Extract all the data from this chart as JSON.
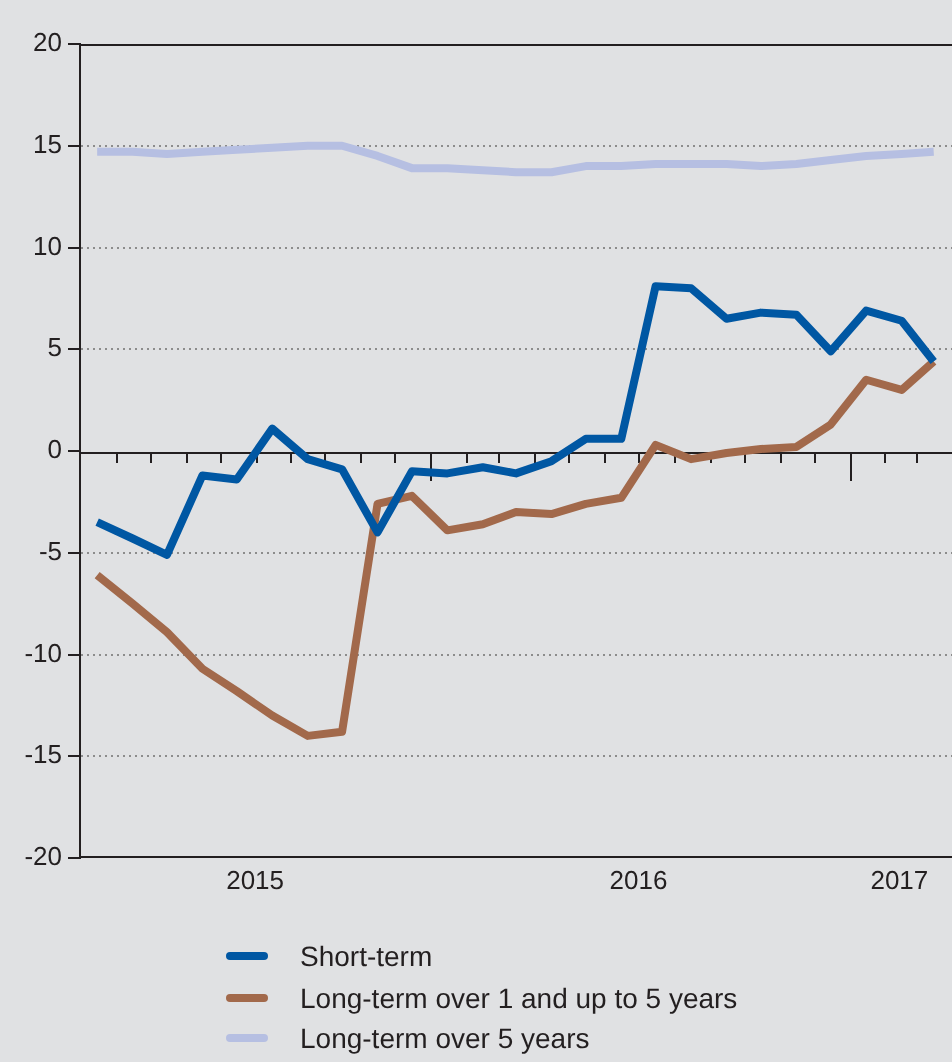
{
  "chart_data": {
    "type": "line",
    "x": [
      "2015-03-16",
      "2015-04-16",
      "2015-05-16",
      "2015-06-16",
      "2015-07-16",
      "2015-08-16",
      "2015-09-16",
      "2015-10-16",
      "2015-11-16",
      "2015-12-16",
      "2016-01-16",
      "2016-02-16",
      "2016-03-16",
      "2016-04-16",
      "2016-05-16",
      "2016-06-16",
      "2016-07-16",
      "2016-08-16",
      "2016-09-16",
      "2016-10-16",
      "2016-11-16",
      "2016-12-16",
      "2017-01-16",
      "2017-02-16",
      "2017-03-16"
    ],
    "xlim": [
      "2015-03-01",
      "2017-04-01"
    ],
    "xticks": [
      {
        "value": "2015-04-01",
        "label": null
      },
      {
        "value": "2015-05-01",
        "label": null
      },
      {
        "value": "2015-06-01",
        "label": null
      },
      {
        "value": "2015-07-01",
        "label": null
      },
      {
        "value": "2015-08-01",
        "label": null
      },
      {
        "value": "2015-09-01",
        "label": null
      },
      {
        "value": "2015-10-01",
        "label": null
      },
      {
        "value": "2015-11-01",
        "label": null
      },
      {
        "value": "2015-12-01",
        "label": null
      },
      {
        "value": "2016-01-01",
        "label": null
      },
      {
        "value": "2016-02-01",
        "label": null
      },
      {
        "value": "2016-03-01",
        "label": null
      },
      {
        "value": "2016-04-01",
        "label": null
      },
      {
        "value": "2016-05-01",
        "label": null
      },
      {
        "value": "2016-06-01",
        "label": null
      },
      {
        "value": "2016-07-01",
        "label": null
      },
      {
        "value": "2016-08-01",
        "label": null
      },
      {
        "value": "2016-09-01",
        "label": null
      },
      {
        "value": "2016-10-01",
        "label": null
      },
      {
        "value": "2016-11-01",
        "label": null
      },
      {
        "value": "2016-12-01",
        "label": null
      },
      {
        "value": "2017-01-01",
        "label": null
      },
      {
        "value": "2017-02-01",
        "label": null
      },
      {
        "value": "2017-03-01",
        "label": null
      },
      {
        "value": "2015-08-01",
        "label": "2015"
      },
      {
        "value": "2016-07-01",
        "label": "2016"
      },
      {
        "value": "2017-02-14",
        "label": "2017"
      }
    ],
    "ylim": [
      -20,
      20
    ],
    "yticks": [
      -20,
      -15,
      -10,
      -5,
      0,
      5,
      10,
      15,
      20
    ],
    "grid": "y",
    "legend": "bottom",
    "marker": "none",
    "line_style": "solid",
    "series": [
      {
        "name": "Short-term",
        "color": "#0057a3",
        "values": [
          -3.5,
          -4.3,
          -5.1,
          -1.2,
          -1.4,
          1.1,
          -0.4,
          -0.9,
          -4.0,
          -1.0,
          -1.1,
          -0.8,
          -1.1,
          -0.5,
          0.6,
          0.6,
          8.1,
          8.0,
          6.5,
          6.8,
          6.7,
          4.9,
          6.9,
          6.4,
          4.4
        ]
      },
      {
        "name": "Long-term over 1 and up to 5 years",
        "color": "#a2694b",
        "values": [
          -6.1,
          -7.5,
          -8.9,
          -10.7,
          -11.8,
          -13.0,
          -14.0,
          -13.8,
          -2.6,
          -2.2,
          -3.9,
          -3.6,
          -3.0,
          -3.1,
          -2.6,
          -2.3,
          0.3,
          -0.4,
          -0.1,
          0.1,
          0.2,
          1.3,
          3.5,
          3.0,
          4.4
        ]
      },
      {
        "name": "Long-term over 5 years",
        "color": "#b6bfe2",
        "values": [
          14.7,
          14.7,
          14.6,
          14.7,
          14.8,
          14.9,
          15.0,
          15.0,
          14.5,
          13.9,
          13.9,
          13.8,
          13.7,
          13.7,
          14.0,
          14.0,
          14.1,
          14.1,
          14.1,
          14.0,
          14.1,
          14.3,
          14.5,
          14.6,
          14.7
        ]
      }
    ]
  }
}
